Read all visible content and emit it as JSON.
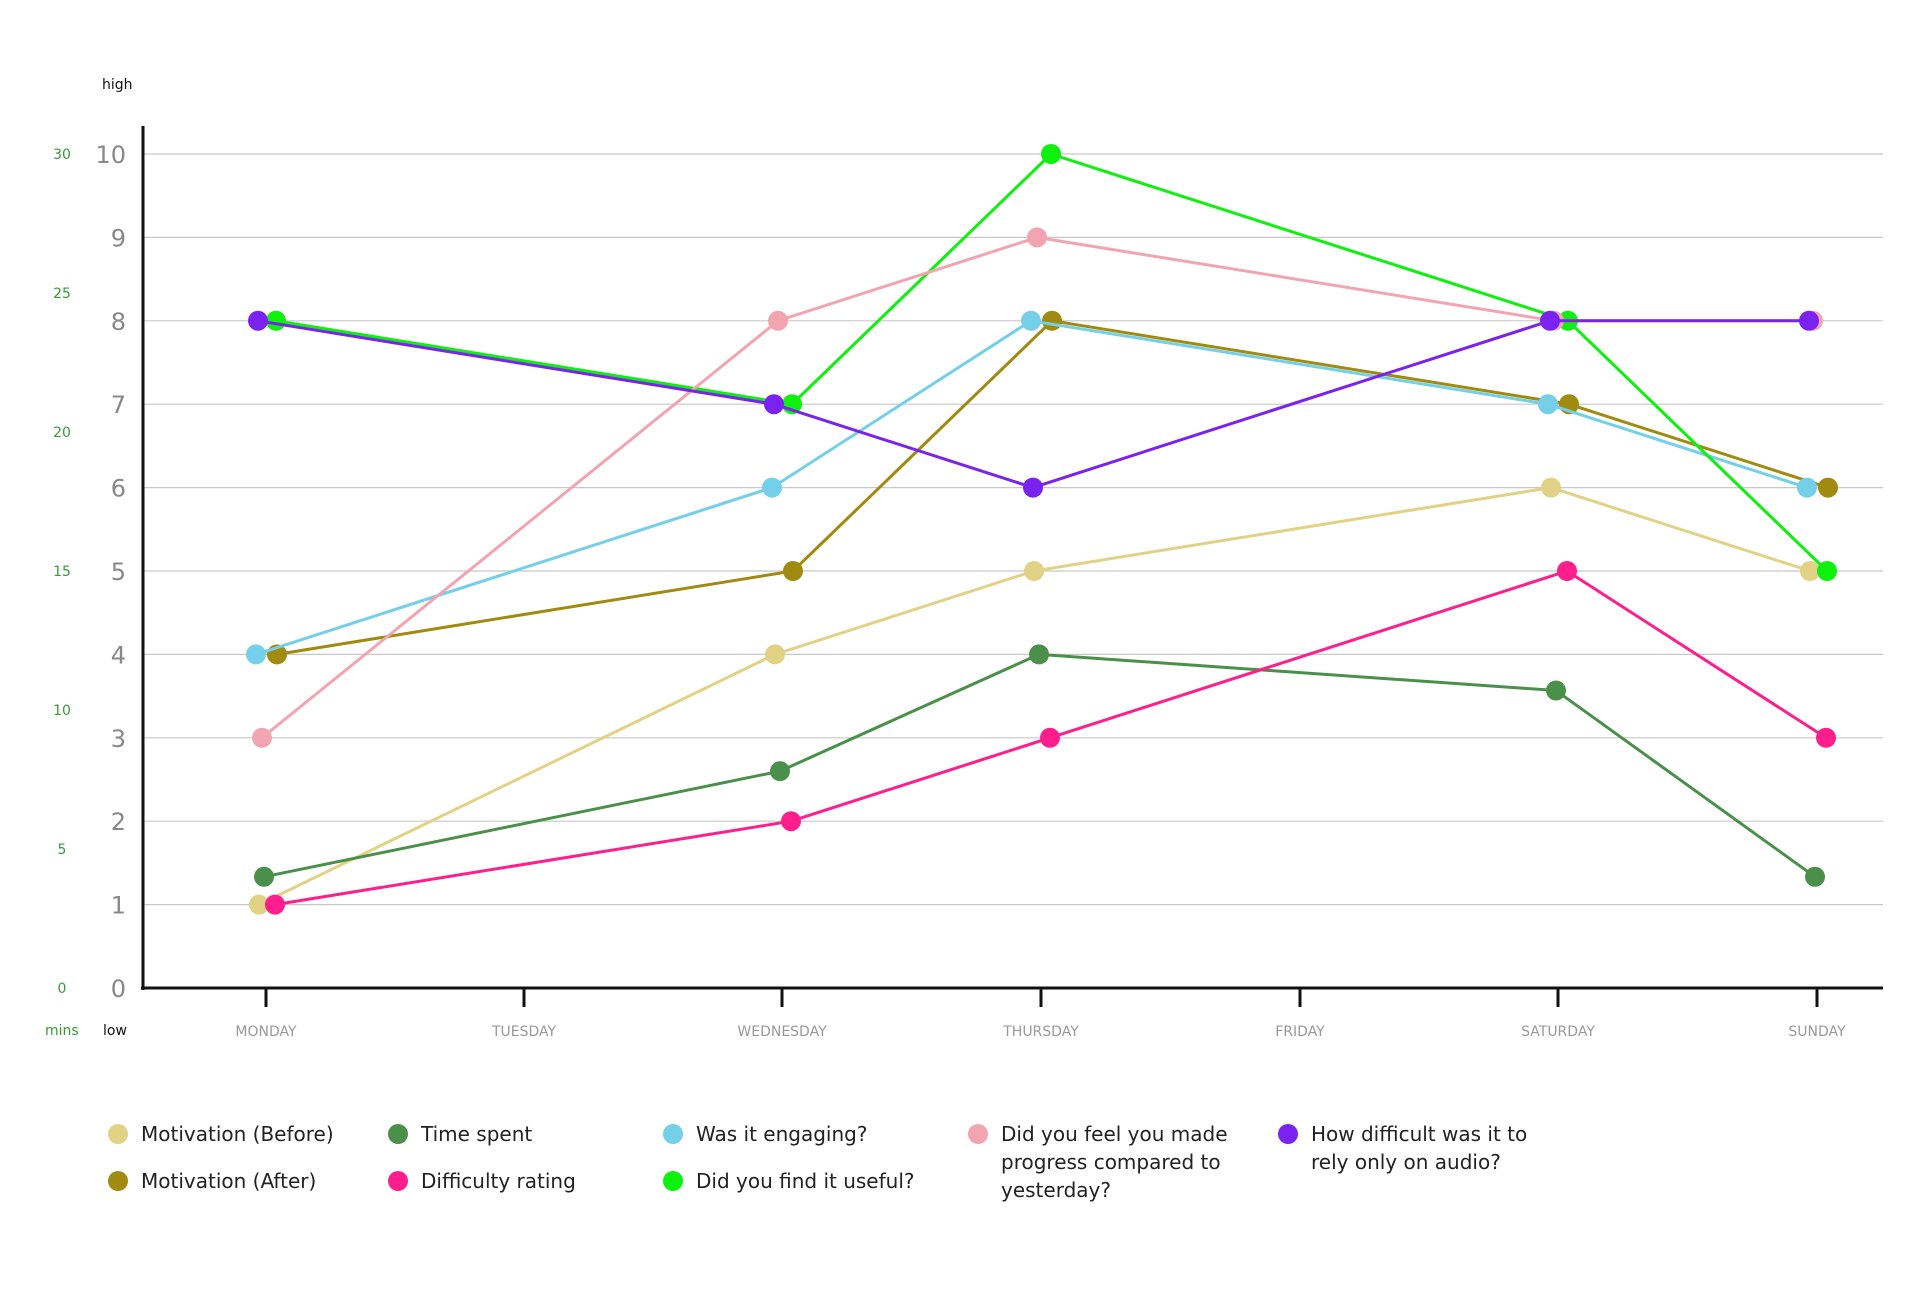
{
  "chart_data": {
    "type": "line",
    "categories": [
      "MONDAY",
      "TUESDAY",
      "WEDNESDAY",
      "THURSDAY",
      "FRIDAY",
      "SATURDAY",
      "SUNDAY"
    ],
    "y_axis": {
      "label_top": "high",
      "label_bottom": "low",
      "ticks": [
        "0",
        "1",
        "2",
        "3",
        "4",
        "5",
        "6",
        "7",
        "8",
        "9",
        "10"
      ],
      "ylim": [
        0,
        10
      ]
    },
    "y_axis_secondary": {
      "unit_label": "mins",
      "ticks": [
        "0",
        "5",
        "10",
        "15",
        "20",
        "25",
        "30"
      ],
      "ylim": [
        0,
        30
      ],
      "color": "#3a9a3a"
    },
    "grid": true,
    "series": [
      {
        "name": "Motivation (Before)",
        "color": "#e2d286",
        "axis": "primary",
        "points": [
          [
            "MONDAY",
            1
          ],
          [
            "WEDNESDAY",
            4
          ],
          [
            "THURSDAY",
            5
          ],
          [
            "SATURDAY",
            6
          ],
          [
            "SUNDAY",
            5
          ]
        ]
      },
      {
        "name": "Motivation (After)",
        "color": "#a08a10",
        "axis": "primary",
        "points": [
          [
            "MONDAY",
            4
          ],
          [
            "WEDNESDAY",
            5
          ],
          [
            "THURSDAY",
            8
          ],
          [
            "SATURDAY",
            7
          ],
          [
            "SUNDAY",
            6
          ]
        ]
      },
      {
        "name": "Time spent",
        "color": "#4a8f4a",
        "axis": "secondary",
        "points": [
          [
            "MONDAY",
            4
          ],
          [
            "WEDNESDAY",
            7.8
          ],
          [
            "THURSDAY",
            12
          ],
          [
            "SATURDAY",
            10.7
          ],
          [
            "SUNDAY",
            4
          ]
        ]
      },
      {
        "name": "Difficulty rating",
        "color": "#ff1e8c",
        "axis": "primary",
        "points": [
          [
            "MONDAY",
            1
          ],
          [
            "WEDNESDAY",
            2
          ],
          [
            "THURSDAY",
            3
          ],
          [
            "SATURDAY",
            5
          ],
          [
            "SUNDAY",
            3
          ]
        ]
      },
      {
        "name": "Was it engaging?",
        "color": "#74cfe8",
        "axis": "primary",
        "points": [
          [
            "MONDAY",
            4
          ],
          [
            "WEDNESDAY",
            6
          ],
          [
            "THURSDAY",
            8
          ],
          [
            "SATURDAY",
            7
          ],
          [
            "SUNDAY",
            6
          ]
        ]
      },
      {
        "name": "Did you find it useful?",
        "color": "#0ef00e",
        "axis": "primary",
        "points": [
          [
            "MONDAY",
            8
          ],
          [
            "WEDNESDAY",
            7
          ],
          [
            "THURSDAY",
            10
          ],
          [
            "SATURDAY",
            8
          ],
          [
            "SUNDAY",
            5
          ]
        ]
      },
      {
        "name": "Did you feel you made\nprogress compared to\nyesterday?",
        "color": "#f2a5b0",
        "axis": "primary",
        "points": [
          [
            "MONDAY",
            3
          ],
          [
            "WEDNESDAY",
            8
          ],
          [
            "THURSDAY",
            9
          ],
          [
            "SATURDAY",
            8
          ],
          [
            "SUNDAY",
            8
          ]
        ]
      },
      {
        "name": "How difficult was it to\nrely only on  audio?",
        "color": "#7a22f0",
        "axis": "primary",
        "points": [
          [
            "MONDAY",
            8
          ],
          [
            "WEDNESDAY",
            7
          ],
          [
            "THURSDAY",
            6
          ],
          [
            "SATURDAY",
            8
          ],
          [
            "SUNDAY",
            8
          ]
        ]
      }
    ],
    "legend_position": "bottom"
  }
}
